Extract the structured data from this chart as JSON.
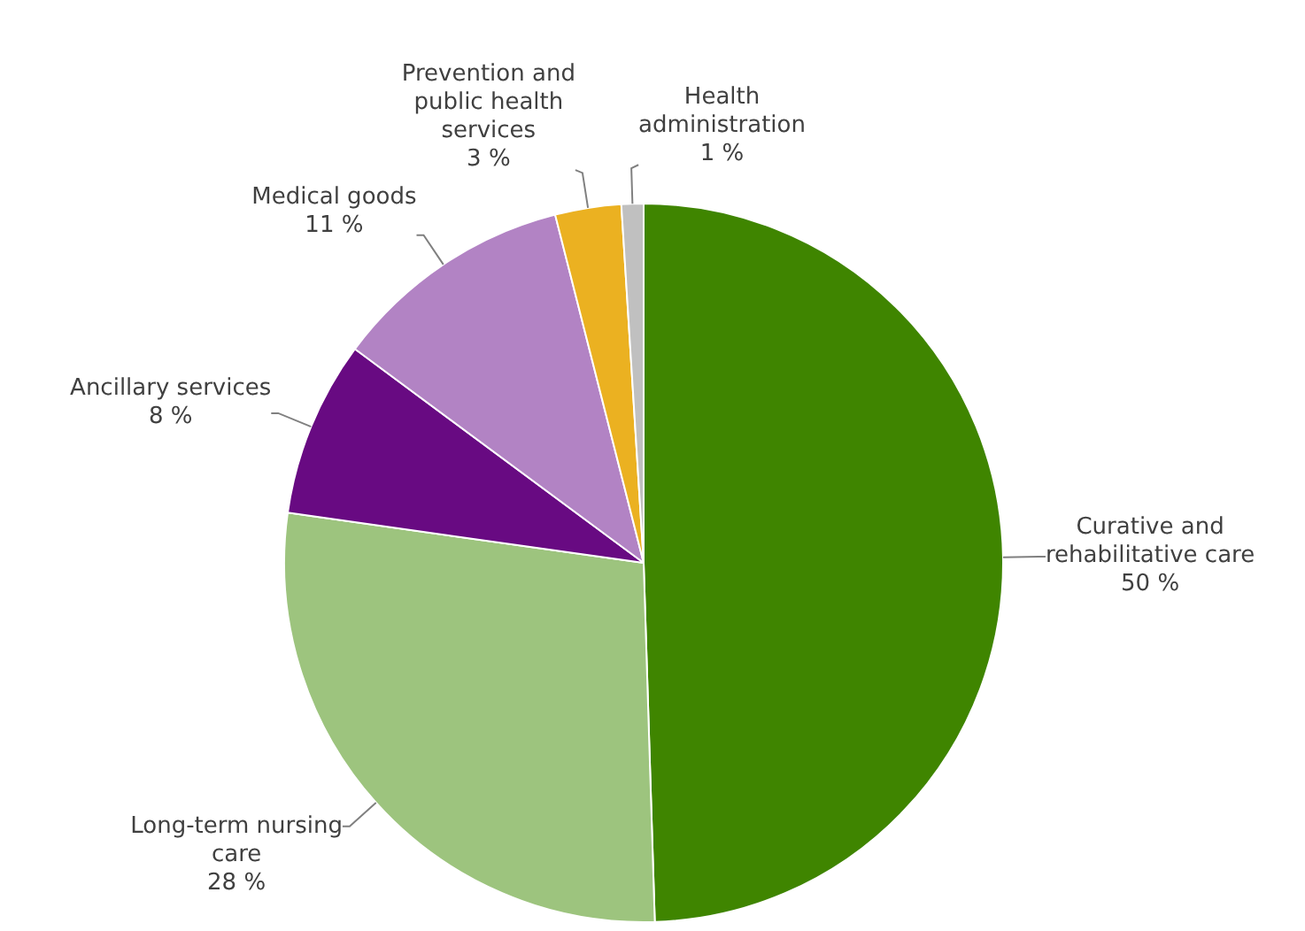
{
  "chart_data": {
    "type": "pie",
    "categories": [
      "Curative and rehabilitative care",
      "Long-term nursing care",
      "Ancillary services",
      "Medical goods",
      "Prevention and public health services",
      "Health administration"
    ],
    "values": [
      50,
      28,
      8,
      11,
      3,
      1
    ],
    "value_labels": [
      "50 %",
      "28 %",
      "8 %",
      "11 %",
      "3 %",
      "1 %"
    ],
    "colors": [
      "#3f8500",
      "#9dc47e",
      "#680a82",
      "#b283c4",
      "#ebb121",
      "#c0c0c0"
    ],
    "legend": false
  }
}
